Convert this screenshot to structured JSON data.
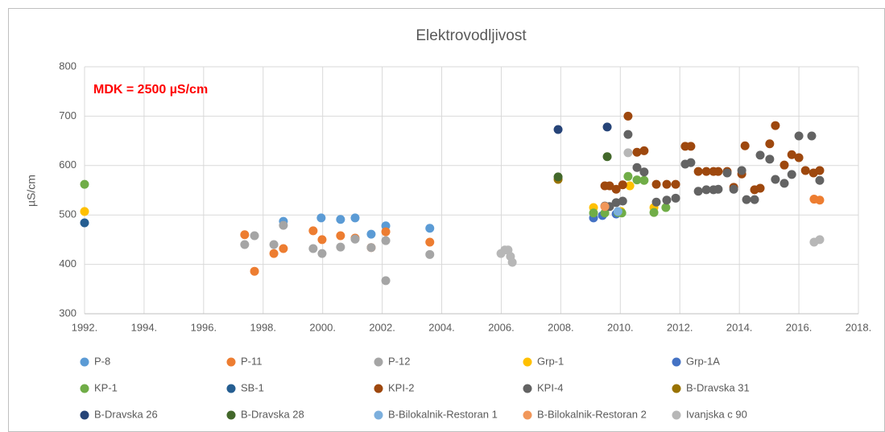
{
  "chart_data": {
    "type": "scatter",
    "title": "Elektrovodljivost",
    "y_label": "µS/cm",
    "annotation": "MDK = 2500 µS/cm",
    "xlim": [
      1992,
      2018
    ],
    "ylim": [
      300,
      800
    ],
    "xticks": [
      {
        "value": 1992,
        "label": "1992."
      },
      {
        "value": 1994,
        "label": "1994."
      },
      {
        "value": 1996,
        "label": "1996."
      },
      {
        "value": 1998,
        "label": "1998."
      },
      {
        "value": 2000,
        "label": "2000."
      },
      {
        "value": 2002,
        "label": "2002."
      },
      {
        "value": 2004,
        "label": "2004."
      },
      {
        "value": 2006,
        "label": "2006."
      },
      {
        "value": 2008,
        "label": "2008."
      },
      {
        "value": 2010,
        "label": "2010."
      },
      {
        "value": 2012,
        "label": "2012."
      },
      {
        "value": 2014,
        "label": "2014."
      },
      {
        "value": 2016,
        "label": "2016."
      },
      {
        "value": 2018,
        "label": "2018."
      }
    ],
    "yticks": [
      300,
      400,
      500,
      600,
      700,
      800
    ],
    "grid": true,
    "legend": "bottom",
    "series": [
      {
        "name": "P-8",
        "color": "#5b9bd5",
        "x": [
          1998.68,
          1999.95,
          2000.6,
          2001.09,
          2001.63,
          2002.12,
          2003.6
        ],
        "values": [
          487,
          494,
          491,
          494,
          461,
          478,
          473
        ]
      },
      {
        "name": "P-11",
        "color": "#ed7d31",
        "x": [
          1997.38,
          1997.71,
          1998.36,
          1998.68,
          1999.68,
          1999.98,
          2000.6,
          2001.09,
          2001.63,
          2002.12,
          2003.6,
          2016.51,
          2016.7
        ],
        "values": [
          460,
          386,
          422,
          432,
          468,
          450,
          458,
          453,
          434,
          466,
          445,
          532,
          530
        ]
      },
      {
        "name": "P-12",
        "color": "#a5a5a5",
        "x": [
          1997.38,
          1997.71,
          1998.36,
          1998.68,
          1999.68,
          1999.98,
          2000.6,
          2001.09,
          2001.63,
          2002.12,
          2002.12,
          2003.6
        ],
        "values": [
          440,
          458,
          440,
          479,
          432,
          422,
          435,
          451,
          434,
          448,
          367,
          420
        ]
      },
      {
        "name": "Grp-1",
        "color": "#ffc000",
        "x": [
          1992,
          2009.1,
          2010.02,
          2010.32,
          2011.13
        ],
        "values": [
          507,
          515,
          507,
          559,
          515
        ]
      },
      {
        "name": "Grp-1A",
        "color": "#4472c4",
        "x": [
          2009.1,
          2009.4,
          2009.86
        ],
        "values": [
          494,
          499,
          502
        ]
      },
      {
        "name": "KP-1",
        "color": "#70ad47",
        "x": [
          1992,
          2009.1,
          2009.48,
          2009.92,
          2010.05,
          2010.26,
          2010.56,
          2010.8,
          2011.13,
          2011.53
        ],
        "values": [
          562,
          504,
          504,
          505,
          504,
          578,
          571,
          570,
          505,
          515
        ]
      },
      {
        "name": "SB-1",
        "color": "#255e91",
        "x": [
          1992
        ],
        "values": [
          484
        ]
      },
      {
        "name": "KPI-2",
        "color": "#9e480e",
        "x": [
          2009.48,
          2009.64,
          2009.86,
          2010.08,
          2010.26,
          2010.56,
          2010.8,
          2011.21,
          2011.56,
          2011.86,
          2012.18,
          2012.37,
          2012.62,
          2012.89,
          2013.13,
          2013.29,
          2013.59,
          2013.81,
          2014.08,
          2014.19,
          2014.51,
          2014.7,
          2015.02,
          2015.21,
          2015.51,
          2015.76,
          2016,
          2016.22,
          2016.49,
          2016.7
        ],
        "values": [
          559,
          559,
          552,
          561,
          700,
          627,
          630,
          562,
          562,
          562,
          639,
          639,
          588,
          588,
          588,
          588,
          588,
          556,
          583,
          640,
          551,
          554,
          644,
          681,
          601,
          622,
          616,
          590,
          585,
          590
        ]
      },
      {
        "name": "KPI-4",
        "color": "#636363",
        "x": [
          2009.48,
          2009.64,
          2009.86,
          2010.08,
          2010.26,
          2010.56,
          2010.8,
          2011.21,
          2011.56,
          2011.86,
          2012.18,
          2012.37,
          2012.62,
          2012.89,
          2013.13,
          2013.29,
          2013.59,
          2013.81,
          2014.08,
          2014.24,
          2014.51,
          2014.7,
          2015.02,
          2015.21,
          2015.51,
          2015.76,
          2016,
          2016.43,
          2016.7
        ],
        "values": [
          518,
          517,
          525,
          528,
          663,
          596,
          587,
          526,
          530,
          534,
          603,
          606,
          548,
          551,
          551,
          552,
          585,
          552,
          590,
          531,
          531,
          621,
          613,
          572,
          564,
          582,
          660,
          660,
          570
        ]
      },
      {
        "name": "B-Dravska 31",
        "color": "#997300",
        "x": [
          2007.91
        ],
        "values": [
          572
        ]
      },
      {
        "name": "B-Dravska 26",
        "color": "#264478",
        "x": [
          2007.91,
          2009.56
        ],
        "values": [
          673,
          678
        ]
      },
      {
        "name": "B-Dravska 28",
        "color": "#43682b",
        "x": [
          2007.91,
          2009.56
        ],
        "values": [
          577,
          618
        ]
      },
      {
        "name": "B-Bilokalnik-Restoran 1",
        "color": "#7cafdd",
        "x": [
          2009.92
        ],
        "values": [
          507
        ]
      },
      {
        "name": "B-Bilokalnik-Restoran 2",
        "color": "#f1975a",
        "x": [
          2009.48
        ],
        "values": [
          517
        ]
      },
      {
        "name": "Ivanjska c 90",
        "color": "#b7b7b7",
        "x": [
          2005.99,
          2006.12,
          2006.23,
          2006.31,
          2006.37,
          2010.26,
          2016.51,
          2016.7
        ],
        "values": [
          422,
          429,
          429,
          416,
          404,
          626,
          445,
          450
        ]
      }
    ]
  }
}
